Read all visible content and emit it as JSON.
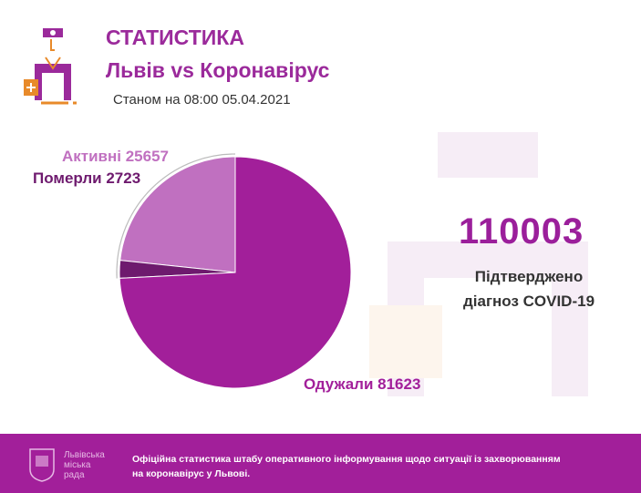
{
  "header": {
    "title": "СТАТИСТИКА",
    "subtitle": "Львів vs Коронавірус",
    "date": "Станом на 08:00 05.04.2021"
  },
  "summary": {
    "total": "110003",
    "caption_line1": "Підтверджено",
    "caption_line2": "діагноз COVID-19"
  },
  "chart_data": {
    "type": "pie",
    "title": "",
    "slices": [
      {
        "name": "Активні",
        "value": 25657,
        "label": "Активні 25657",
        "color": "#c070c0"
      },
      {
        "name": "Померли",
        "value": 2723,
        "label": "Померли 2723",
        "color": "#6e1a6e"
      },
      {
        "name": "Одужали",
        "value": 81623,
        "label": "Одужали 81623",
        "color": "#a21f9a"
      }
    ],
    "direction": "counterclockwise-from-top"
  },
  "footer": {
    "org_line1": "Львівська",
    "org_line2": "міська",
    "org_line3": "рада",
    "text": "Офіційна статистика штабу оперативного інформування щодо ситуації із захворюванням на коронавірус у Львові."
  },
  "colors": {
    "accent": "#9b2a9b",
    "orange": "#e88a2a",
    "footer": "#a21f9a"
  }
}
